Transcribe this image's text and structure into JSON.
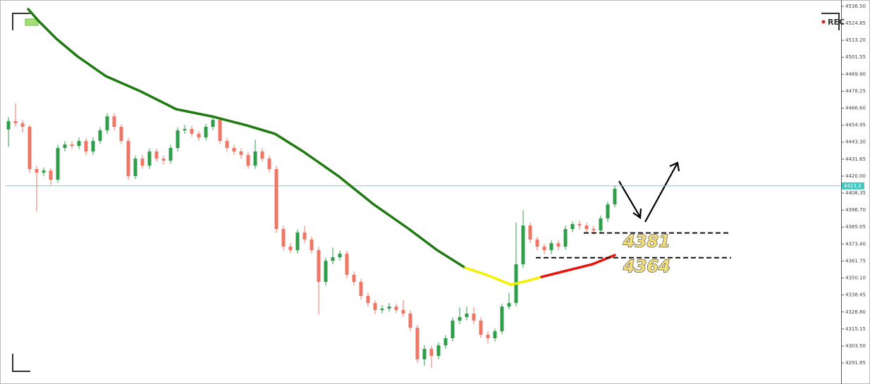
{
  "chart_data": {
    "type": "candlestick",
    "open": [
      4452.0,
      4457.7,
      4456.3,
      4453.8,
      4424.8,
      4422.4,
      4423.8,
      4417.5,
      4439.3,
      4441.7,
      4440.7,
      4444.1,
      4436.9,
      4444.1,
      4451.4,
      4461.0,
      4453.8,
      4444.1,
      4420.0,
      4432.0,
      4427.2,
      4436.9,
      4432.0,
      4430.6,
      4439.3,
      4451.4,
      4452.3,
      4449.0,
      4446.5,
      4453.8,
      4458.6,
      4444.1,
      4439.3,
      4436.9,
      4434.5,
      4427.2,
      4436.9,
      4432.0,
      4424.8,
      4383.7,
      4371.6,
      4369.2,
      4381.3,
      4376.5,
      4369.2,
      4347.4,
      4361.9,
      4364.3,
      4366.8,
      4352.3,
      4347.4,
      4337.8,
      4332.9,
      4328.1,
      4329.1,
      4330.5,
      4328.1,
      4325.7,
      4316.0,
      4294.3,
      4301.5,
      4296.7,
      4303.9,
      4308.8,
      4320.9,
      4323.3,
      4325.7,
      4320.9,
      4311.2,
      4308.8,
      4313.6,
      4330.5,
      4332.9,
      4359.5,
      4386.1,
      4376.5,
      4371.6,
      4369.2,
      4374.0,
      4371.6,
      4383.7,
      4387.1,
      4386.1,
      4383.7,
      4382.7,
      4391.0,
      4400.6
    ],
    "high": [
      4460.5,
      4470.0,
      4458.5,
      4455.0,
      4427.0,
      4426.0,
      4425.5,
      4441.5,
      4444.0,
      4444.0,
      4446.5,
      4446.0,
      4446.5,
      4453.5,
      4463.0,
      4463.0,
      4455.5,
      4446.0,
      4434.0,
      4434.5,
      4439.0,
      4439.0,
      4434.0,
      4441.5,
      4453.5,
      4455.0,
      4454.5,
      4451.0,
      4456.0,
      4461.0,
      4460.5,
      4446.0,
      4441.5,
      4439.0,
      4436.5,
      4445.0,
      4439.0,
      4434.0,
      4427.0,
      4386.0,
      4374.0,
      4383.5,
      4386.0,
      4378.5,
      4371.5,
      4364.0,
      4371.0,
      4369.0,
      4369.0,
      4354.5,
      4349.5,
      4340.0,
      4335.0,
      4331.5,
      4333.0,
      4332.5,
      4335.0,
      4328.0,
      4318.0,
      4304.0,
      4303.5,
      4306.0,
      4311.0,
      4323.0,
      4330.0,
      4330.5,
      4330.0,
      4323.0,
      4313.5,
      4315.5,
      4332.5,
      4340.0,
      4388.0,
      4396.5,
      4388.0,
      4378.5,
      4373.5,
      4376.0,
      4376.0,
      4386.0,
      4389.0,
      4389.5,
      4388.0,
      4386.0,
      4393.0,
      4402.5,
      4413.5
    ],
    "low": [
      4440.0,
      4454.0,
      4450.0,
      4422.0,
      4395.8,
      4420.0,
      4414.0,
      4415.5,
      4437.0,
      4438.5,
      4438.5,
      4434.5,
      4434.5,
      4442.0,
      4449.0,
      4451.5,
      4442.0,
      4417.5,
      4418.0,
      4425.0,
      4425.0,
      4430.0,
      4428.0,
      4428.5,
      4437.0,
      4449.0,
      4447.0,
      4444.0,
      4444.5,
      4451.5,
      4442.0,
      4437.0,
      4434.5,
      4432.0,
      4425.0,
      4425.0,
      4430.0,
      4422.5,
      4381.0,
      4369.0,
      4367.0,
      4367.0,
      4374.0,
      4367.0,
      4325.0,
      4345.0,
      4359.5,
      4362.0,
      4350.0,
      4345.0,
      4335.5,
      4330.5,
      4325.5,
      4326.0,
      4327.0,
      4326.0,
      4323.5,
      4313.5,
      4292.0,
      4290.0,
      4288.5,
      4294.5,
      4301.5,
      4306.5,
      4318.5,
      4321.0,
      4318.5,
      4309.0,
      4305.0,
      4306.5,
      4311.5,
      4328.5,
      4330.5,
      4357.0,
      4374.0,
      4369.0,
      4366.5,
      4366.5,
      4369.0,
      4369.5,
      4381.5,
      4383.5,
      4381.0,
      4380.0,
      4380.5,
      4388.5,
      4398.5
    ],
    "close": [
      4457.7,
      4456.3,
      4453.8,
      4424.8,
      4422.4,
      4423.8,
      4417.5,
      4439.3,
      4441.7,
      4440.7,
      4444.1,
      4436.9,
      4444.1,
      4451.4,
      4461.0,
      4453.8,
      4444.1,
      4420.0,
      4432.0,
      4427.2,
      4436.9,
      4432.0,
      4430.6,
      4439.3,
      4451.4,
      4452.3,
      4449.0,
      4446.5,
      4453.8,
      4458.6,
      4444.1,
      4439.3,
      4436.9,
      4434.5,
      4427.2,
      4436.9,
      4432.0,
      4424.8,
      4383.7,
      4371.6,
      4369.2,
      4381.3,
      4376.5,
      4369.2,
      4347.4,
      4361.9,
      4364.3,
      4366.8,
      4352.3,
      4347.4,
      4337.8,
      4332.9,
      4328.1,
      4329.1,
      4330.5,
      4328.1,
      4325.7,
      4316.0,
      4294.3,
      4301.5,
      4296.7,
      4303.9,
      4308.8,
      4320.9,
      4323.3,
      4325.7,
      4320.9,
      4311.2,
      4308.8,
      4313.6,
      4330.5,
      4332.9,
      4359.5,
      4386.1,
      4376.5,
      4371.6,
      4369.2,
      4374.0,
      4371.6,
      4383.7,
      4387.1,
      4386.1,
      4383.7,
      4382.7,
      4391.0,
      4400.6,
      4411.3
    ],
    "up_color": "#2f9e4a",
    "down_color": "#ef7665",
    "moving_average": [
      {
        "color": "#1f7a12",
        "x": [
          2.8,
          4.3,
          6.8,
          9.8,
          13.8,
          18.8,
          23.8,
          28.8,
          33.8,
          37.8,
          41.8,
          46.8,
          51.8,
          56.8,
          60.8,
          64.8
        ],
        "values": [
          4534.5,
          4526.3,
          4514.2,
          4502.1,
          4488.6,
          4478.0,
          4465.9,
          4461.0,
          4454.8,
          4449.0,
          4436.9,
          4420.0,
          4400.6,
          4383.7,
          4369.2,
          4357.1
        ]
      },
      {
        "color": "#f5f000",
        "x": [
          64.8,
          67.8,
          71.3,
          73.8,
          75.6
        ],
        "values": [
          4357.1,
          4352.3,
          4345.5,
          4348.4,
          4350.8
        ]
      },
      {
        "color": "#e8140c",
        "x": [
          75.6,
          78.8,
          82.8,
          86
        ],
        "values": [
          4350.8,
          4354.7,
          4359.5,
          4365.8
        ]
      }
    ],
    "levels": [
      4381,
      4364
    ],
    "last_price": 4413.3,
    "rec_label": "REC",
    "ylim": [
      4279.8,
      4540.8
    ],
    "yticks": [
      {
        "value": 4536.5,
        "label": "4536.50"
      },
      4524.85,
      {
        "value": 4513.2,
        "label": "4513.20"
      },
      4501.55,
      {
        "value": 4489.9,
        "label": "4489.90"
      },
      4478.25,
      {
        "value": 4466.6,
        "label": "4466.60"
      },
      4454.95,
      {
        "value": 4443.3,
        "label": "4443.30"
      },
      4431.65,
      {
        "value": 4420,
        "label": "4420.00"
      },
      4408.35,
      {
        "value": 4396.7,
        "label": "4396.70"
      },
      4385.05,
      {
        "value": 4373.4,
        "label": "4373.40"
      },
      4361.75,
      {
        "value": 4350.1,
        "label": "4350.10"
      },
      4338.45,
      {
        "value": 4326.8,
        "label": "4326.80"
      },
      4315.15,
      {
        "value": 4303.5,
        "label": "4303.50"
      },
      4291.85
    ]
  }
}
